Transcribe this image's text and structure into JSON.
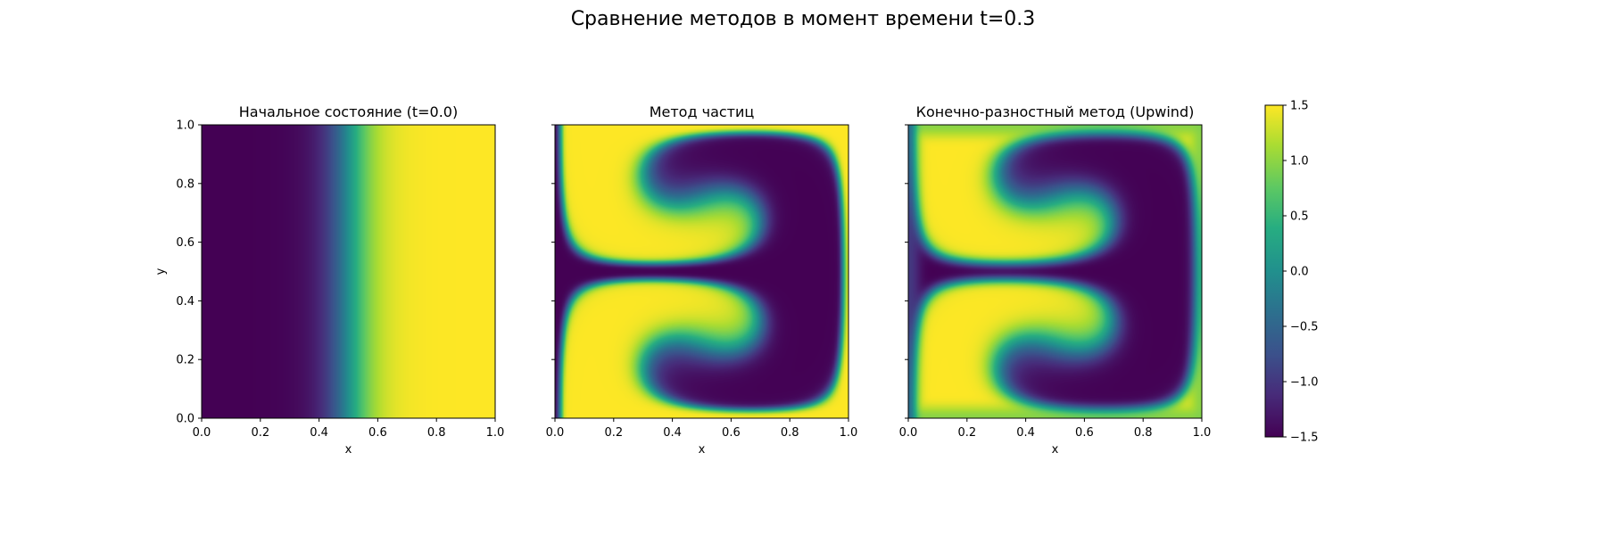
{
  "figure": {
    "suptitle": "Сравнение методов в момент времени t=0.3"
  },
  "chart_data": {
    "type": "heatmap",
    "colormap": "viridis",
    "vmin": -1.5,
    "vmax": 1.5,
    "colorbar": {
      "ticks": [
        1.5,
        1.0,
        0.5,
        0.0,
        -0.5,
        -1.0,
        -1.5
      ],
      "tick_labels": [
        "1.5",
        "1.0",
        "0.5",
        "0.0",
        "−0.5",
        "−1.0",
        "−1.5"
      ]
    },
    "panels": [
      {
        "title": "Начальное состояние (t=0.0)",
        "xlabel": "x",
        "ylabel": "y",
        "xlim": [
          0,
          1
        ],
        "ylim": [
          0,
          1
        ],
        "x_ticks": [
          "0.0",
          "0.2",
          "0.4",
          "0.6",
          "0.8",
          "1.0"
        ],
        "y_ticks": [
          "0.0",
          "0.2",
          "0.4",
          "0.6",
          "0.8",
          "1.0"
        ],
        "field": "tanh((x-0.5)/0.1)*1.5"
      },
      {
        "title": "Метод частиц",
        "xlabel": "x",
        "xlim": [
          0,
          1
        ],
        "ylim": [
          0,
          1
        ],
        "x_ticks": [
          "0.0",
          "0.2",
          "0.4",
          "0.6",
          "0.8",
          "1.0"
        ],
        "field": "advected two-lobe vortex pattern, high values along left column and central band"
      },
      {
        "title": "Конечно-разностный метод (Upwind)",
        "xlabel": "x",
        "xlim": [
          0,
          1
        ],
        "ylim": [
          0,
          1
        ],
        "x_ticks": [
          "0.0",
          "0.2",
          "0.4",
          "0.6",
          "0.8",
          "1.0"
        ],
        "field": "advected two-lobe vortex pattern (smoother), high values along left column and central band"
      }
    ]
  }
}
